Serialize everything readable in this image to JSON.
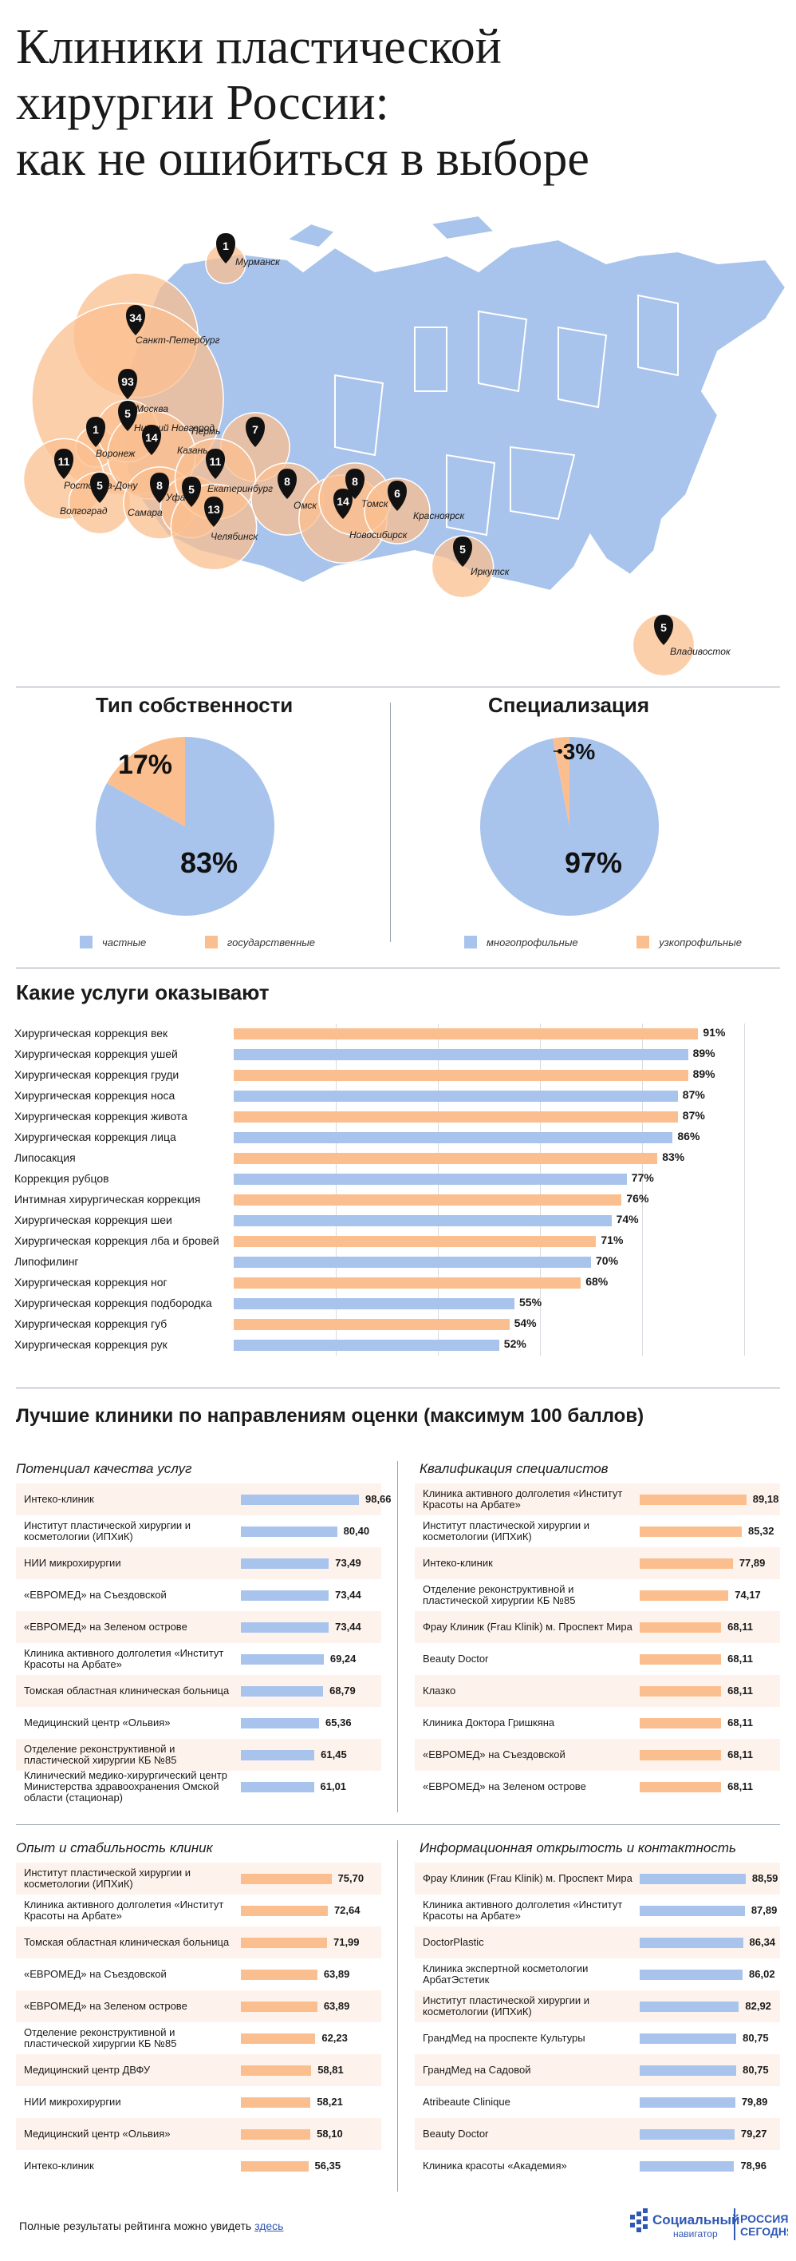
{
  "title_lines": [
    "Клиники пластической",
    "хирургии России:",
    "как не ошибиться в выборе"
  ],
  "colors": {
    "orange": "#fbbf8f",
    "orange_dark": "#f4a574",
    "blue": "#a8c4ec",
    "marker": "#111111"
  },
  "map": {
    "cities": [
      {
        "name": "Мурманск",
        "count": 1
      },
      {
        "name": "Санкт-Петербург",
        "count": 34
      },
      {
        "name": "Москва",
        "count": 93
      },
      {
        "name": "Воронеж",
        "count": 1
      },
      {
        "name": "Нижний Новгород",
        "count": 5
      },
      {
        "name": "Ростов-на-Дону",
        "count": 11
      },
      {
        "name": "Волгоград",
        "count": 5
      },
      {
        "name": "Казань",
        "count": 14
      },
      {
        "name": "Самара",
        "count": 8
      },
      {
        "name": "Пермь",
        "count": 7
      },
      {
        "name": "Уфа",
        "count": 5
      },
      {
        "name": "Екатеринбург",
        "count": 11
      },
      {
        "name": "Челябинск",
        "count": 13
      },
      {
        "name": "Омск",
        "count": 8
      },
      {
        "name": "Новосибирск",
        "count": 14
      },
      {
        "name": "Томск",
        "count": 8
      },
      {
        "name": "Красноярск",
        "count": 6
      },
      {
        "name": "Иркутск",
        "count": 5
      },
      {
        "name": "Владивосток",
        "count": 5
      }
    ]
  },
  "ownership": {
    "title": "Тип собственности",
    "legend_private": "частные",
    "legend_state": "государственные"
  },
  "specialization": {
    "title": "Специализация",
    "legend_multi": "многопрофильные",
    "legend_narrow": "узкопрофильные"
  },
  "services": {
    "title": "Какие услуги оказывают"
  },
  "best": {
    "title": "Лучшие клиники по направлениям оценки (максимум 100 баллов)",
    "panel_titles": [
      "Потенциал качества услуг",
      "Квалификация специалистов",
      "Опыт и стабильность клиник",
      "Информационная открытость и контактность"
    ]
  },
  "footer": {
    "text": "Полные результаты рейтинга можно увидеть ",
    "link": "здесь"
  },
  "brand": {
    "name": "Социальный",
    "sub": "навигатор",
    "partner_top": "РОССИЯ",
    "partner_bottom": "СЕГОДНЯ"
  },
  "chart_data": [
    {
      "type": "pie",
      "title": "Тип собственности",
      "labels": [
        "частные",
        "государственные"
      ],
      "values": [
        83,
        17
      ],
      "value_labels": [
        "83%",
        "17%"
      ]
    },
    {
      "type": "pie",
      "title": "Специализация",
      "labels": [
        "многопрофильные",
        "узкопрофильные"
      ],
      "values": [
        97,
        3
      ],
      "value_labels": [
        "97%",
        "3%"
      ]
    },
    {
      "type": "bar",
      "title": "Какие услуги оказывают",
      "categories": [
        "Хирургическая коррекция век",
        "Хирургическая коррекция ушей",
        "Хирургическая коррекция груди",
        "Хирургическая коррекция носа",
        "Хирургическая коррекция живота",
        "Хирургическая коррекция лица",
        "Липосакция",
        "Коррекция рубцов",
        "Интимная хирургическая коррекция",
        "Хирургическая коррекция шеи",
        "Хирургическая коррекция лба и бровей",
        "Липофилинг",
        "Хирургическая коррекция ног",
        "Хирургическая коррекция подбородка",
        "Хирургическая коррекция губ",
        "Хирургическая коррекция рук"
      ],
      "values": [
        91,
        89,
        89,
        87,
        87,
        86,
        83,
        77,
        76,
        74,
        71,
        70,
        68,
        55,
        54,
        52
      ],
      "value_labels": [
        "91%",
        "89%",
        "89%",
        "87%",
        "87%",
        "86%",
        "83%",
        "77%",
        "76%",
        "74%",
        "71%",
        "70%",
        "68%",
        "55%",
        "54%",
        "52%"
      ],
      "ylim": [
        0,
        100
      ]
    },
    {
      "type": "bar",
      "title": "Потенциал качества услуг",
      "categories": [
        "Интеко-клиник",
        "Институт пластической хирургии и косметологии (ИПХиК)",
        "НИИ микрохирургии",
        "«ЕВРОМЕД» на Съездовской",
        "«ЕВРОМЕД» на Зеленом острове",
        "Клиника активного долголетия «Институт Красоты на Арбате»",
        "Томская областная клиническая больница",
        "Медицинский центр «Ольвия»",
        "Отделение реконструктивной и пластической хирургии КБ №85",
        "Клинический медико-хирургический центр Министерства здравоохранения Омской области (стационар)"
      ],
      "values": [
        98.66,
        80.4,
        73.49,
        73.44,
        73.44,
        69.24,
        68.79,
        65.36,
        61.45,
        61.01
      ],
      "value_labels": [
        "98,66",
        "80,40",
        "73,49",
        "73,44",
        "73,44",
        "69,24",
        "68,79",
        "65,36",
        "61,45",
        "61,01"
      ],
      "ylim": [
        0,
        100
      ]
    },
    {
      "type": "bar",
      "title": "Квалификация специалистов",
      "categories": [
        "Клиника активного долголетия «Институт Красоты на Арбате»",
        "Институт пластической хирургии и косметологии (ИПХиК)",
        "Интеко-клиник",
        "Отделение реконструктивной и пластической хирургии КБ №85",
        "Фрау Клиник (Frau Klinik) м. Проспект Мира",
        "Beauty Doctor",
        "Клазко",
        "Клиника Доктора Гришкяна",
        "«ЕВРОМЕД» на Съездовской",
        "«ЕВРОМЕД» на Зеленом острове"
      ],
      "values": [
        89.18,
        85.32,
        77.89,
        74.17,
        68.11,
        68.11,
        68.11,
        68.11,
        68.11,
        68.11
      ],
      "value_labels": [
        "89,18",
        "85,32",
        "77,89",
        "74,17",
        "68,11",
        "68,11",
        "68,11",
        "68,11",
        "68,11",
        "68,11"
      ],
      "ylim": [
        0,
        100
      ]
    },
    {
      "type": "bar",
      "title": "Опыт и стабильность клиник",
      "categories": [
        "Институт пластической хирургии и косметологии (ИПХиК)",
        "Клиника активного долголетия «Институт Красоты на Арбате»",
        "Томская областная клиническая больница",
        "«ЕВРОМЕД» на Съездовской",
        "«ЕВРОМЕД» на Зеленом острове",
        "Отделение реконструктивной и пластической хирургии КБ №85",
        "Медицинский центр ДВФУ",
        "НИИ микрохирургии",
        "Медицинский центр «Ольвия»",
        "Интеко-клиник"
      ],
      "values": [
        75.7,
        72.64,
        71.99,
        63.89,
        63.89,
        62.23,
        58.81,
        58.21,
        58.1,
        56.35
      ],
      "value_labels": [
        "75,70",
        "72,64",
        "71,99",
        "63,89",
        "63,89",
        "62,23",
        "58,81",
        "58,21",
        "58,10",
        "56,35"
      ],
      "ylim": [
        0,
        100
      ]
    },
    {
      "type": "bar",
      "title": "Информационная открытость и контактность",
      "categories": [
        "Фрау Клиник (Frau Klinik) м. Проспект Мира",
        "Клиника активного долголетия «Институт Красоты на Арбате»",
        "DoctorPlastic",
        "Клиника экспертной косметологии АрбатЭстетик",
        "Институт пластической хирургии и косметологии (ИПХиК)",
        "ГрандМед на проспекте Культуры",
        "ГрандМед на Садовой",
        "Atribeaute Clinique",
        "Beauty Doctor",
        "Клиника красоты «Академия»"
      ],
      "values": [
        88.59,
        87.89,
        86.34,
        86.02,
        82.92,
        80.75,
        80.75,
        79.89,
        79.27,
        78.96
      ],
      "value_labels": [
        "88,59",
        "87,89",
        "86,34",
        "86,02",
        "82,92",
        "80,75",
        "80,75",
        "79,89",
        "79,27",
        "78,96"
      ],
      "ylim": [
        0,
        100
      ]
    }
  ]
}
